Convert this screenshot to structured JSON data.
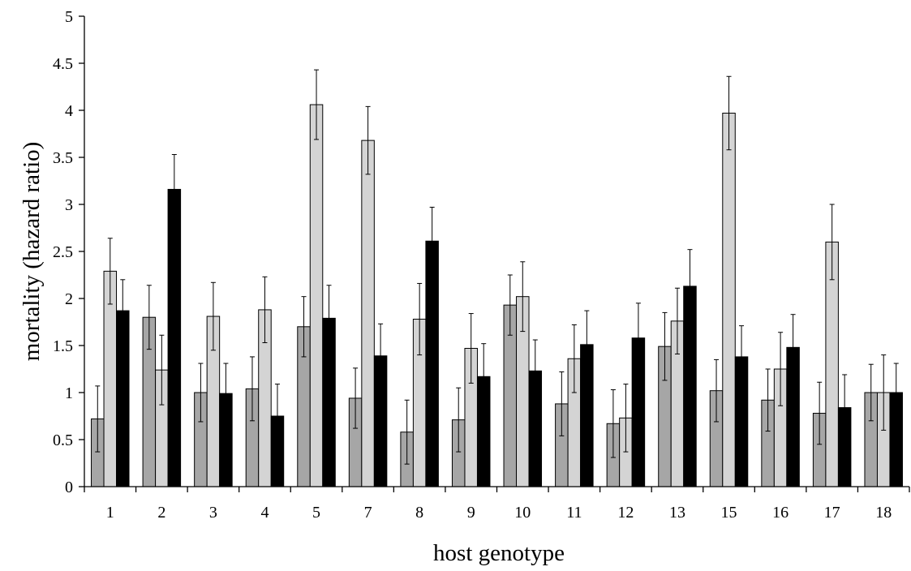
{
  "chart_data": {
    "type": "bar",
    "xlabel": "host genotype",
    "ylabel": "mortality (hazard ratio)",
    "ylim": [
      0,
      5
    ],
    "yticks": [
      "0",
      "0.5",
      "1",
      "1.5",
      "2",
      "2.5",
      "3",
      "3.5",
      "4",
      "4.5",
      "5"
    ],
    "categories": [
      "1",
      "2",
      "3",
      "4",
      "5",
      "7",
      "8",
      "9",
      "10",
      "11",
      "12",
      "13",
      "15",
      "16",
      "17",
      "18"
    ],
    "grid": false,
    "legend": "none",
    "series": [
      {
        "color": "#a6a6a6",
        "values": [
          0.72,
          1.8,
          1.0,
          1.04,
          1.7,
          0.94,
          0.58,
          0.71,
          1.93,
          0.88,
          0.67,
          1.49,
          1.02,
          0.92,
          0.78,
          1.0
        ],
        "errors": [
          0.35,
          0.34,
          0.31,
          0.34,
          0.32,
          0.32,
          0.34,
          0.34,
          0.32,
          0.34,
          0.36,
          0.36,
          0.33,
          0.33,
          0.33,
          0.3
        ]
      },
      {
        "color": "#d4d4d4",
        "values": [
          2.29,
          1.24,
          1.81,
          1.88,
          4.06,
          3.68,
          1.78,
          1.47,
          2.02,
          1.36,
          0.73,
          1.76,
          3.97,
          1.25,
          2.6,
          1.0
        ],
        "errors": [
          0.35,
          0.37,
          0.36,
          0.35,
          0.37,
          0.36,
          0.38,
          0.37,
          0.37,
          0.36,
          0.36,
          0.35,
          0.39,
          0.39,
          0.4,
          0.4
        ]
      },
      {
        "color": "#000000",
        "values": [
          1.87,
          3.16,
          0.99,
          0.75,
          1.79,
          1.39,
          2.61,
          1.17,
          1.23,
          1.51,
          1.58,
          2.13,
          1.38,
          1.48,
          0.84,
          1.0
        ],
        "errors": [
          0.33,
          0.37,
          0.32,
          0.34,
          0.35,
          0.34,
          0.36,
          0.35,
          0.33,
          0.36,
          0.37,
          0.39,
          0.33,
          0.35,
          0.35,
          0.31
        ]
      }
    ]
  }
}
